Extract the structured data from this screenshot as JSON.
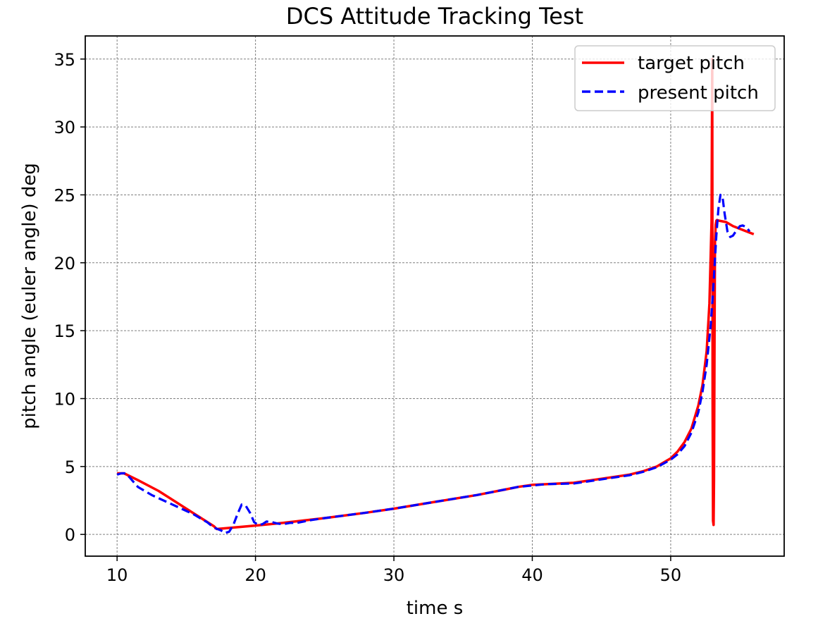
{
  "chart_data": {
    "type": "line",
    "title": "DCS Attitude Tracking Test",
    "xlabel": "time s",
    "ylabel": "pitch angle (euler angle) deg",
    "xlim": [
      7.7,
      58.2
    ],
    "ylim": [
      -1.6,
      36.7
    ],
    "xticks": [
      10,
      20,
      30,
      40,
      50
    ],
    "yticks": [
      0,
      5,
      10,
      15,
      20,
      25,
      30,
      35
    ],
    "grid": true,
    "legend_position": "top-right",
    "series": [
      {
        "name": "target pitch",
        "color": "#ff0000",
        "style": "solid",
        "x": [
          10.0,
          10.5,
          11.5,
          13.0,
          15.0,
          17.0,
          17.2,
          20.0,
          22.0,
          25.0,
          28.0,
          30.0,
          33.0,
          36.0,
          38.0,
          39.0,
          40.0,
          41.0,
          43.0,
          45.0,
          47.0,
          48.0,
          49.0,
          50.0,
          50.5,
          51.0,
          51.5,
          52.0,
          52.3,
          52.6,
          52.8,
          52.95,
          53.0,
          53.03,
          53.06,
          53.1,
          53.13,
          53.17,
          53.2,
          53.25,
          53.3,
          53.35,
          53.5,
          54.0,
          54.5,
          55.0,
          55.5,
          56.0
        ],
        "y": [
          4.5,
          4.5,
          4.0,
          3.2,
          1.9,
          0.6,
          0.4,
          0.65,
          0.85,
          1.2,
          1.6,
          1.9,
          2.4,
          2.9,
          3.3,
          3.5,
          3.65,
          3.7,
          3.8,
          4.1,
          4.4,
          4.65,
          5.0,
          5.6,
          6.1,
          6.8,
          7.8,
          9.5,
          11.0,
          13.5,
          17.0,
          23.0,
          35.0,
          10.0,
          1.0,
          0.7,
          4.0,
          15.0,
          21.5,
          22.8,
          23.1,
          23.15,
          23.1,
          23.0,
          22.7,
          22.5,
          22.3,
          22.1
        ]
      },
      {
        "name": "present pitch",
        "color": "#0000ff",
        "style": "dashed",
        "x": [
          10.0,
          10.3,
          10.6,
          10.9,
          11.5,
          12.5,
          14.0,
          15.5,
          16.5,
          17.0,
          17.5,
          17.8,
          18.1,
          18.4,
          18.7,
          19.0,
          19.3,
          19.6,
          19.9,
          20.2,
          20.5,
          20.8,
          21.2,
          21.6,
          22.0,
          22.5,
          23.0,
          24.0,
          25.0,
          28.0,
          30.0,
          33.0,
          36.0,
          38.0,
          39.0,
          40.0,
          41.0,
          43.0,
          45.0,
          47.0,
          48.0,
          49.0,
          50.0,
          50.5,
          51.0,
          51.5,
          52.0,
          52.3,
          52.6,
          52.9,
          53.1,
          53.3,
          53.45,
          53.6,
          53.75,
          53.9,
          54.1,
          54.3,
          54.5,
          54.7,
          55.0,
          55.2,
          55.5,
          55.7
        ],
        "y": [
          4.4,
          4.5,
          4.5,
          4.2,
          3.5,
          2.9,
          2.2,
          1.5,
          0.9,
          0.5,
          0.3,
          0.1,
          0.2,
          0.7,
          1.5,
          2.2,
          2.1,
          1.6,
          0.9,
          0.7,
          0.75,
          0.95,
          0.9,
          0.8,
          0.75,
          0.85,
          0.85,
          1.05,
          1.2,
          1.6,
          1.9,
          2.4,
          2.9,
          3.3,
          3.5,
          3.6,
          3.7,
          3.75,
          4.05,
          4.35,
          4.6,
          4.95,
          5.5,
          5.9,
          6.5,
          7.5,
          9.0,
          10.5,
          12.5,
          15.5,
          18.5,
          22.0,
          24.0,
          25.0,
          24.8,
          23.6,
          22.3,
          21.9,
          22.0,
          22.3,
          22.7,
          22.75,
          22.6,
          22.3
        ]
      }
    ]
  }
}
